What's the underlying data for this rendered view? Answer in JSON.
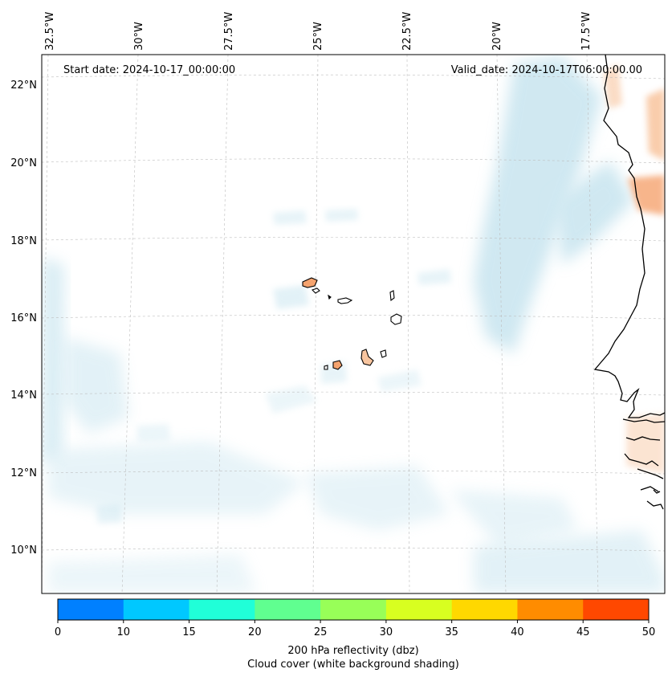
{
  "map": {
    "start_date": "Start date: 2024-10-17_00:00:00",
    "valid_date": "Valid_date: 2024-10-17T06:00:00.00",
    "lon_labels": [
      "32.5°W",
      "30°W",
      "27.5°W",
      "25°W",
      "22.5°W",
      "20°W",
      "17.5°W"
    ],
    "lat_labels": [
      "22°N",
      "20°N",
      "18°N",
      "16°N",
      "14°N",
      "12°N",
      "10°N"
    ]
  },
  "colorbar": {
    "colors": [
      "#0080ff",
      "#00c8ff",
      "#20ffd8",
      "#60ff90",
      "#98ff58",
      "#d8ff20",
      "#ffd800",
      "#ff8c00",
      "#ff4800"
    ],
    "ticks": [
      "0",
      "10",
      "15",
      "20",
      "25",
      "30",
      "35",
      "40",
      "45",
      "50"
    ],
    "label_line1": "200 hPa reflectivity (dbz)",
    "label_line2": "Cloud cover (white background shading)"
  }
}
